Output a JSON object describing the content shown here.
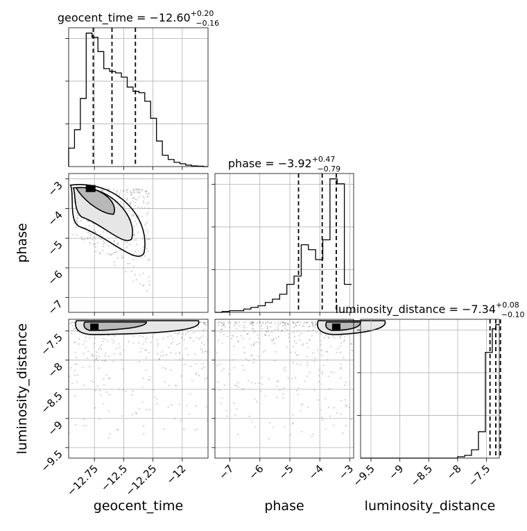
{
  "chart_data": {
    "type": "corner",
    "parameters": [
      "geocent_time",
      "phase",
      "luminosity_distance"
    ],
    "grid": true,
    "panels": [
      {
        "kind": "histogram",
        "parameter": "geocent_time",
        "title": {
          "name": "geocent_time",
          "median": "−12.60",
          "plus": "+0.20",
          "minus": "−0.16"
        },
        "xlim": [
          -12.97,
          -11.78
        ],
        "xticks": [
          -12.75,
          -12.5,
          -12.25,
          -12.0
        ],
        "quantile_lines": [
          -12.76,
          -12.6,
          -12.4
        ],
        "bins": [
          -12.97,
          -12.92,
          -12.87,
          -12.82,
          -12.77,
          -12.72,
          -12.67,
          -12.62,
          -12.57,
          -12.52,
          -12.47,
          -12.42,
          -12.37,
          -12.32,
          -12.27,
          -12.22,
          -12.17,
          -12.12,
          -12.07,
          -12.02,
          -11.97,
          -11.92,
          -11.87,
          -11.82,
          -11.78
        ],
        "counts": [
          0.13,
          0.26,
          0.48,
          0.94,
          0.91,
          0.81,
          0.69,
          0.67,
          0.66,
          0.63,
          0.56,
          0.53,
          0.52,
          0.46,
          0.34,
          0.18,
          0.08,
          0.05,
          0.03,
          0.02,
          0.01,
          0.005,
          0.003,
          0.0
        ]
      },
      {
        "kind": "contour",
        "x": "geocent_time",
        "y": "phase",
        "xlim": [
          -12.97,
          -11.78
        ],
        "ylim": [
          -7.5,
          -2.82
        ],
        "yticks": [
          -7,
          -6,
          -5,
          -4,
          -3
        ],
        "density_peak": [
          -12.8,
          -3.35
        ]
      },
      {
        "kind": "histogram",
        "parameter": "phase",
        "title": {
          "name": "phase",
          "median": "−3.92",
          "plus": "+0.47",
          "minus": "−0.79"
        },
        "xlim": [
          -7.5,
          -2.87
        ],
        "xticks": [
          -7,
          -6,
          -5,
          -4,
          -3
        ],
        "quantile_lines": [
          -4.71,
          -3.92,
          -3.45
        ],
        "bins": [
          -7.5,
          -7.26,
          -7.02,
          -6.78,
          -6.54,
          -6.3,
          -6.06,
          -5.82,
          -5.58,
          -5.34,
          -5.1,
          -4.86,
          -4.62,
          -4.38,
          -4.14,
          -3.9,
          -3.66,
          -3.42,
          -3.18,
          -2.94
        ],
        "counts": [
          0.0,
          0.005,
          0.01,
          0.01,
          0.02,
          0.03,
          0.04,
          0.06,
          0.08,
          0.11,
          0.17,
          0.22,
          0.41,
          0.38,
          0.32,
          0.44,
          0.81,
          0.78,
          0.17
        ]
      },
      {
        "kind": "contour",
        "x": "geocent_time",
        "y": "luminosity_distance",
        "xlim": [
          -12.97,
          -11.78
        ],
        "ylim": [
          -9.68,
          -7.3
        ],
        "yticks": [
          -9.5,
          -9.0,
          -8.5,
          -8.0,
          -7.5
        ],
        "xticks": [
          -12.75,
          -12.5,
          -12.25,
          -12.0
        ],
        "density_peak": [
          -12.75,
          -7.42
        ]
      },
      {
        "kind": "contour",
        "x": "phase",
        "y": "luminosity_distance",
        "xlim": [
          -7.5,
          -2.87
        ],
        "ylim": [
          -9.68,
          -7.3
        ],
        "xticks": [
          -7,
          -6,
          -5,
          -4,
          -3
        ],
        "density_peak": [
          -3.45,
          -7.42
        ]
      },
      {
        "kind": "histogram",
        "parameter": "luminosity_distance",
        "title": {
          "name": "luminosity_distance",
          "median": "−7.34",
          "plus": "+0.08",
          "minus": "−0.10"
        },
        "xlim": [
          -9.68,
          -7.28
        ],
        "xticks": [
          -9.5,
          -9.0,
          -8.5,
          -8.0,
          -7.5
        ],
        "quantile_lines": [
          -7.44,
          -7.34,
          -7.26
        ],
        "bins": [
          -9.68,
          -8.0,
          -7.88,
          -7.76,
          -7.64,
          -7.52,
          -7.4,
          -7.34,
          -7.28
        ],
        "counts": [
          0.0,
          0.01,
          0.02,
          0.06,
          0.19,
          0.76,
          0.93,
          0.96
        ]
      }
    ],
    "xlabels": [
      "geocent_time",
      "phase",
      "luminosity_distance"
    ],
    "ylabels": [
      "phase",
      "luminosity_distance"
    ]
  }
}
